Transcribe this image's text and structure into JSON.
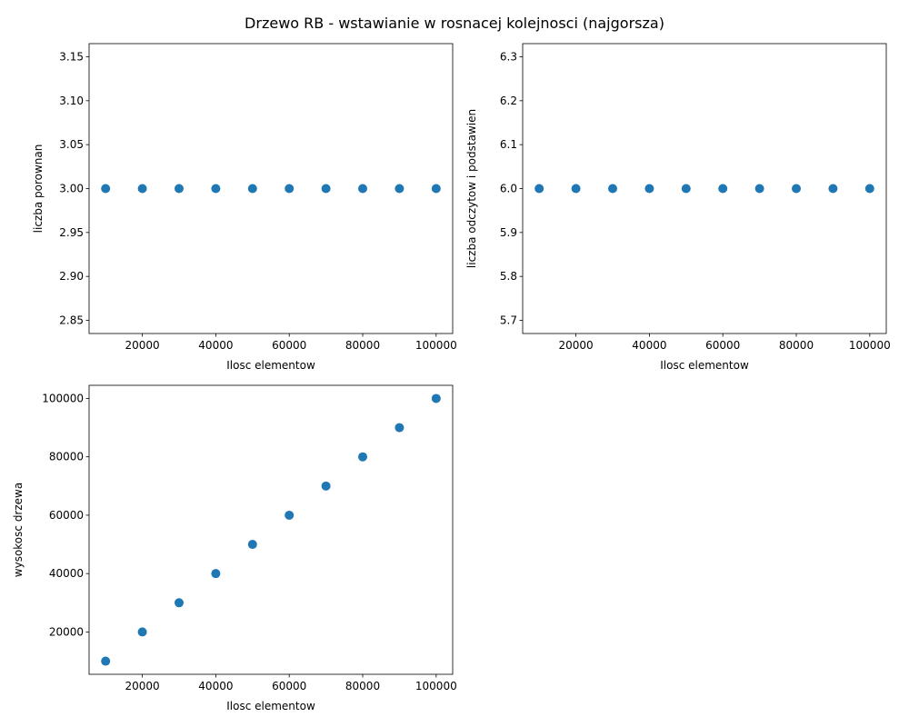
{
  "figure": {
    "suptitle": "Drzewo RB - wstawianie w rosnacej kolejnosci (najgorsza)"
  },
  "chart_data": [
    {
      "type": "scatter",
      "xlabel": "Ilosc elementow",
      "ylabel": "liczba porownan",
      "x": [
        10000,
        20000,
        30000,
        40000,
        50000,
        60000,
        70000,
        80000,
        90000,
        100000
      ],
      "y": [
        3,
        3,
        3,
        3,
        3,
        3,
        3,
        3,
        3,
        3
      ],
      "xlim": [
        5500,
        104500
      ],
      "ylim": [
        2.835,
        3.165
      ],
      "xticks": [
        20000,
        40000,
        60000,
        80000,
        100000
      ],
      "xtick_labels": [
        "20000",
        "40000",
        "60000",
        "80000",
        "100000"
      ],
      "yticks": [
        2.85,
        2.9,
        2.95,
        3.0,
        3.05,
        3.1,
        3.15
      ],
      "ytick_labels": [
        "2.85",
        "2.90",
        "2.95",
        "3.00",
        "3.05",
        "3.10",
        "3.15"
      ],
      "marker_color": "#1f77b4",
      "grid": false
    },
    {
      "type": "scatter",
      "xlabel": "Ilosc elementow",
      "ylabel": "liczba odczytow i podstawien",
      "x": [
        10000,
        20000,
        30000,
        40000,
        50000,
        60000,
        70000,
        80000,
        90000,
        100000
      ],
      "y": [
        6,
        6,
        6,
        6,
        6,
        6,
        6,
        6,
        6,
        6
      ],
      "xlim": [
        5500,
        104500
      ],
      "ylim": [
        5.67,
        6.33
      ],
      "xticks": [
        20000,
        40000,
        60000,
        80000,
        100000
      ],
      "xtick_labels": [
        "20000",
        "40000",
        "60000",
        "80000",
        "100000"
      ],
      "yticks": [
        5.7,
        5.8,
        5.9,
        6.0,
        6.1,
        6.2,
        6.3
      ],
      "ytick_labels": [
        "5.7",
        "5.8",
        "5.9",
        "6.0",
        "6.1",
        "6.2",
        "6.3"
      ],
      "marker_color": "#1f77b4",
      "grid": false
    },
    {
      "type": "scatter",
      "xlabel": "Ilosc elementow",
      "ylabel": "wysokosc drzewa",
      "x": [
        10000,
        20000,
        30000,
        40000,
        50000,
        60000,
        70000,
        80000,
        90000,
        100000
      ],
      "y": [
        10000,
        20000,
        30000,
        40000,
        50000,
        60000,
        70000,
        80000,
        90000,
        100000
      ],
      "xlim": [
        5500,
        104500
      ],
      "ylim": [
        5500,
        104500
      ],
      "xticks": [
        20000,
        40000,
        60000,
        80000,
        100000
      ],
      "xtick_labels": [
        "20000",
        "40000",
        "60000",
        "80000",
        "100000"
      ],
      "yticks": [
        20000,
        40000,
        60000,
        80000,
        100000
      ],
      "ytick_labels": [
        "20000",
        "40000",
        "60000",
        "80000",
        "100000"
      ],
      "marker_color": "#1f77b4",
      "grid": false
    }
  ]
}
